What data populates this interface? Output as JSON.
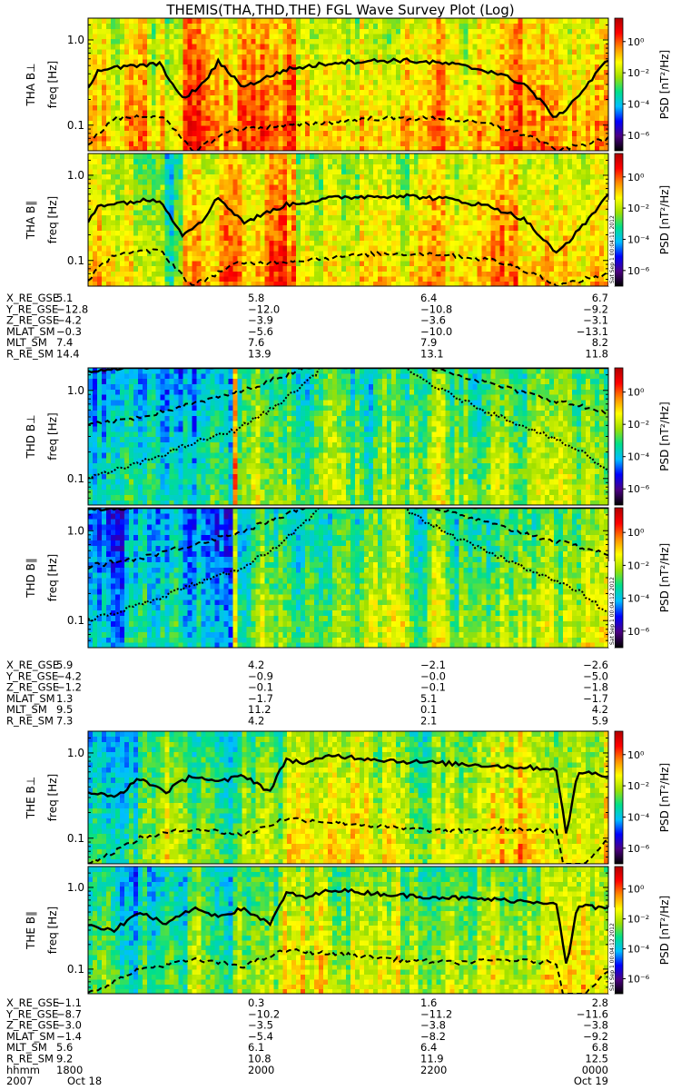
{
  "title": "THEMIS(THA,THD,THE) FGL Wave Survey Plot (Log)",
  "colorbar": {
    "label": "PSD [nT²/Hz]",
    "ticks": [
      "10⁰",
      "10⁻²",
      "10⁻⁴",
      "10⁻⁶"
    ],
    "tick_exponents": [
      0,
      -2,
      -4,
      -6
    ],
    "colors": [
      "#000000",
      "#4b0082",
      "#0000ff",
      "#00bfff",
      "#00e08a",
      "#a0e000",
      "#ffff00",
      "#ff8c00",
      "#ff0000",
      "#b00000"
    ]
  },
  "freq_axis": {
    "ylabel": "freq [Hz]",
    "ticks": [
      "1.0",
      "0.1"
    ],
    "scale": "log"
  },
  "stamps": {
    "a": "Sat Sep  1 00:04:11 2012",
    "b": "Sat Sep  1 00:04:12 2012"
  },
  "groups": [
    {
      "probe": "THA",
      "panels": [
        {
          "label": "THA B⊥"
        },
        {
          "label": "THA B∥",
          "stamp": "a"
        }
      ],
      "ephemeris": {
        "labels": [
          "X_RE_GSE",
          "Y_RE_GSE",
          "Z_RE_GSE",
          "MLAT_SM",
          "MLT_SM",
          "R_RE_SM"
        ],
        "columns": [
          [
            "5.1",
            "−12.8",
            "−4.2",
            "−0.3",
            "7.4",
            "14.4"
          ],
          [
            "5.8",
            "−12.0",
            "−3.9",
            "−5.6",
            "7.6",
            "13.9"
          ],
          [
            "6.4",
            "−10.8",
            "−3.6",
            "−10.0",
            "7.9",
            "13.1"
          ],
          [
            "6.7",
            "−9.2",
            "−3.1",
            "−13.1",
            "8.2",
            "11.8"
          ]
        ]
      }
    },
    {
      "probe": "THD",
      "panels": [
        {
          "label": "THD B⊥"
        },
        {
          "label": "THD B∥",
          "stamp": "b"
        }
      ],
      "ephemeris": {
        "labels": [
          "X_RE_GSE",
          "Y_RE_GSE",
          "Z_RE_GSE",
          "MLAT_SM",
          "MLT_SM",
          "R_RE_SM"
        ],
        "columns": [
          [
            "5.9",
            "−4.2",
            "−1.2",
            "1.3",
            "9.5",
            "7.3"
          ],
          [
            "4.2",
            "−0.9",
            "−0.1",
            "−1.7",
            "11.2",
            "4.2"
          ],
          [
            "−2.1",
            "−0.0",
            "−0.1",
            "5.1",
            "0.1",
            "2.1"
          ],
          [
            "−2.6",
            "−5.0",
            "−1.8",
            "−1.7",
            "4.2",
            "5.9"
          ]
        ]
      }
    },
    {
      "probe": "THE",
      "panels": [
        {
          "label": "THE B⊥"
        },
        {
          "label": "THE B∥",
          "stamp": "b"
        }
      ],
      "ephemeris": {
        "labels": [
          "X_RE_GSE",
          "Y_RE_GSE",
          "Z_RE_GSE",
          "MLAT_SM",
          "MLT_SM",
          "R_RE_SM",
          "hhmm",
          "2007"
        ],
        "columns": [
          [
            "−1.1",
            "−8.7",
            "−3.0",
            "−1.4",
            "5.6",
            "9.2",
            "1800",
            "Oct 18"
          ],
          [
            "0.3",
            "−10.2",
            "−3.5",
            "−5.4",
            "6.1",
            "10.8",
            "2000",
            ""
          ],
          [
            "1.6",
            "−11.2",
            "−3.8",
            "−8.2",
            "6.4",
            "11.9",
            "2200",
            ""
          ],
          [
            "2.8",
            "−11.6",
            "−3.8",
            "−9.2",
            "6.8",
            "12.5",
            "0000",
            "Oct 19"
          ]
        ]
      }
    }
  ],
  "chart_data": {
    "type": "heatmap",
    "title": "THEMIS(THA,THD,THE) FGL Wave Survey Plot (Log)",
    "ylabel": "freq [Hz]",
    "yscale": "log",
    "ylim_hz": [
      0.05,
      1.8
    ],
    "y_ticks": [
      0.1,
      1.0
    ],
    "x_tick_labels": [
      "1800",
      "2000",
      "2200",
      "0000"
    ],
    "x_range": [
      "2007 Oct 18 1800",
      "2007 Oct 19 0000"
    ],
    "colorbar_label": "PSD [nT²/Hz]",
    "colorbar_range_log10": [
      -7,
      1.5
    ],
    "colorbar_ticks_log10": [
      0,
      -2,
      -4,
      -6
    ],
    "panels": [
      {
        "name": "THA B⊥",
        "intensity_bands": [
          [
            0.0,
            0.15,
            -1.5
          ],
          [
            0.15,
            0.18,
            -2.4
          ],
          [
            0.18,
            0.23,
            -0.6
          ],
          [
            0.23,
            0.4,
            -0.4
          ],
          [
            0.4,
            0.52,
            -1.4
          ],
          [
            0.52,
            0.68,
            -1.1
          ],
          [
            0.68,
            0.77,
            -1.2
          ],
          [
            0.77,
            0.88,
            -0.9
          ],
          [
            0.88,
            1.0,
            -1.0
          ]
        ],
        "solid_line_hz": [
          [
            0.0,
            0.28
          ],
          [
            0.02,
            0.45
          ],
          [
            0.1,
            0.5
          ],
          [
            0.14,
            0.52
          ],
          [
            0.18,
            0.2
          ],
          [
            0.22,
            0.3
          ],
          [
            0.25,
            0.55
          ],
          [
            0.3,
            0.28
          ],
          [
            0.38,
            0.45
          ],
          [
            0.48,
            0.55
          ],
          [
            0.6,
            0.58
          ],
          [
            0.7,
            0.52
          ],
          [
            0.78,
            0.42
          ],
          [
            0.84,
            0.3
          ],
          [
            0.9,
            0.12
          ],
          [
            0.95,
            0.25
          ],
          [
            1.0,
            0.6
          ]
        ],
        "dashed_line_hz": [
          [
            0.0,
            0.06
          ],
          [
            0.05,
            0.12
          ],
          [
            0.14,
            0.13
          ],
          [
            0.2,
            0.05
          ],
          [
            0.28,
            0.09
          ],
          [
            0.4,
            0.1
          ],
          [
            0.55,
            0.12
          ],
          [
            0.68,
            0.12
          ],
          [
            0.78,
            0.1
          ],
          [
            0.86,
            0.07
          ],
          [
            0.9,
            0.05
          ],
          [
            1.0,
            0.07
          ]
        ]
      },
      {
        "name": "THA B∥",
        "intensity_bands": [
          [
            0.0,
            0.15,
            -2.0
          ],
          [
            0.15,
            0.18,
            -2.8
          ],
          [
            0.18,
            0.23,
            -0.8
          ],
          [
            0.23,
            0.4,
            -0.7
          ],
          [
            0.4,
            0.52,
            -1.8
          ],
          [
            0.52,
            0.68,
            -1.4
          ],
          [
            0.68,
            0.77,
            -1.6
          ],
          [
            0.77,
            0.88,
            -1.2
          ],
          [
            0.88,
            1.0,
            -1.4
          ]
        ],
        "solid_line_hz": [
          [
            0.0,
            0.28
          ],
          [
            0.02,
            0.45
          ],
          [
            0.1,
            0.5
          ],
          [
            0.14,
            0.52
          ],
          [
            0.18,
            0.2
          ],
          [
            0.22,
            0.3
          ],
          [
            0.25,
            0.55
          ],
          [
            0.3,
            0.28
          ],
          [
            0.38,
            0.45
          ],
          [
            0.48,
            0.55
          ],
          [
            0.6,
            0.58
          ],
          [
            0.7,
            0.52
          ],
          [
            0.78,
            0.42
          ],
          [
            0.84,
            0.3
          ],
          [
            0.9,
            0.12
          ],
          [
            0.95,
            0.25
          ],
          [
            1.0,
            0.6
          ]
        ],
        "dashed_line_hz": [
          [
            0.0,
            0.06
          ],
          [
            0.05,
            0.12
          ],
          [
            0.14,
            0.13
          ],
          [
            0.2,
            0.05
          ],
          [
            0.28,
            0.09
          ],
          [
            0.4,
            0.1
          ],
          [
            0.55,
            0.12
          ],
          [
            0.68,
            0.12
          ],
          [
            0.78,
            0.1
          ],
          [
            0.86,
            0.07
          ],
          [
            0.9,
            0.05
          ],
          [
            1.0,
            0.07
          ]
        ]
      },
      {
        "name": "THD B⊥",
        "intensity_bands": [
          [
            0.0,
            0.28,
            -4.0
          ],
          [
            0.28,
            0.29,
            -0.5
          ],
          [
            0.29,
            0.55,
            -2.8
          ],
          [
            0.55,
            1.0,
            -2.5
          ]
        ],
        "solid_line_hz": [
          [
            0.0,
            1.65
          ],
          [
            0.05,
            1.8
          ],
          [
            0.15,
            1.9
          ]
        ],
        "dashed_line_hz": [
          [
            0.0,
            0.4
          ],
          [
            0.1,
            0.5
          ],
          [
            0.2,
            0.7
          ],
          [
            0.3,
            1.0
          ],
          [
            0.38,
            1.5
          ],
          [
            0.42,
            1.9
          ],
          [
            0.65,
            1.9
          ],
          [
            0.75,
            1.3
          ],
          [
            0.85,
            0.9
          ],
          [
            0.95,
            0.65
          ],
          [
            1.0,
            0.55
          ]
        ],
        "dotted_line_hz": [
          [
            0.0,
            0.1
          ],
          [
            0.1,
            0.15
          ],
          [
            0.2,
            0.25
          ],
          [
            0.28,
            0.35
          ],
          [
            0.35,
            0.6
          ],
          [
            0.4,
            1.0
          ],
          [
            0.44,
            1.6
          ],
          [
            0.45,
            1.9
          ],
          [
            0.6,
            1.9
          ],
          [
            0.62,
            1.6
          ],
          [
            0.68,
            1.0
          ],
          [
            0.76,
            0.6
          ],
          [
            0.86,
            0.35
          ],
          [
            0.95,
            0.2
          ],
          [
            1.0,
            0.12
          ]
        ]
      },
      {
        "name": "THD B∥",
        "intensity_bands": [
          [
            0.0,
            0.28,
            -4.0
          ],
          [
            0.28,
            0.29,
            -0.5
          ],
          [
            0.29,
            0.55,
            -2.8
          ],
          [
            0.55,
            1.0,
            -2.5
          ]
        ],
        "solid_line_hz": [
          [
            0.0,
            1.65
          ],
          [
            0.05,
            1.8
          ],
          [
            0.15,
            1.9
          ]
        ],
        "dashed_line_hz": [
          [
            0.0,
            0.4
          ],
          [
            0.1,
            0.5
          ],
          [
            0.2,
            0.7
          ],
          [
            0.3,
            1.0
          ],
          [
            0.38,
            1.5
          ],
          [
            0.42,
            1.9
          ],
          [
            0.65,
            1.9
          ],
          [
            0.75,
            1.3
          ],
          [
            0.85,
            0.9
          ],
          [
            0.95,
            0.65
          ],
          [
            1.0,
            0.55
          ]
        ],
        "dotted_line_hz": [
          [
            0.0,
            0.1
          ],
          [
            0.1,
            0.15
          ],
          [
            0.2,
            0.25
          ],
          [
            0.28,
            0.35
          ],
          [
            0.35,
            0.6
          ],
          [
            0.4,
            1.0
          ],
          [
            0.44,
            1.6
          ],
          [
            0.45,
            1.9
          ],
          [
            0.6,
            1.9
          ],
          [
            0.62,
            1.6
          ],
          [
            0.68,
            1.0
          ],
          [
            0.76,
            0.6
          ],
          [
            0.86,
            0.35
          ],
          [
            0.95,
            0.2
          ],
          [
            1.0,
            0.12
          ]
        ]
      },
      {
        "name": "THE B⊥",
        "intensity_bands": [
          [
            0.0,
            0.15,
            -3.3
          ],
          [
            0.15,
            0.37,
            -2.5
          ],
          [
            0.37,
            0.47,
            -1.5
          ],
          [
            0.47,
            0.6,
            -1.8
          ],
          [
            0.6,
            0.75,
            -2.3
          ],
          [
            0.75,
            0.95,
            -1.5
          ],
          [
            0.95,
            1.0,
            -1.2
          ]
        ],
        "solid_line_hz": [
          [
            0.0,
            0.35
          ],
          [
            0.05,
            0.3
          ],
          [
            0.1,
            0.5
          ],
          [
            0.15,
            0.35
          ],
          [
            0.2,
            0.55
          ],
          [
            0.25,
            0.45
          ],
          [
            0.3,
            0.55
          ],
          [
            0.35,
            0.35
          ],
          [
            0.38,
            0.85
          ],
          [
            0.42,
            0.75
          ],
          [
            0.47,
            0.95
          ],
          [
            0.5,
            0.9
          ],
          [
            0.6,
            0.8
          ],
          [
            0.7,
            0.75
          ],
          [
            0.8,
            0.7
          ],
          [
            0.9,
            0.65
          ],
          [
            0.92,
            0.1
          ],
          [
            0.94,
            0.6
          ],
          [
            1.0,
            0.55
          ]
        ],
        "dashed_line_hz": [
          [
            0.0,
            0.05
          ],
          [
            0.05,
            0.07
          ],
          [
            0.1,
            0.1
          ],
          [
            0.2,
            0.13
          ],
          [
            0.3,
            0.11
          ],
          [
            0.38,
            0.17
          ],
          [
            0.5,
            0.15
          ],
          [
            0.6,
            0.13
          ],
          [
            0.7,
            0.12
          ],
          [
            0.8,
            0.13
          ],
          [
            0.9,
            0.12
          ],
          [
            0.92,
            0.03
          ],
          [
            1.0,
            0.1
          ]
        ]
      },
      {
        "name": "THE B∥",
        "intensity_bands": [
          [
            0.0,
            0.15,
            -3.5
          ],
          [
            0.15,
            0.37,
            -2.7
          ],
          [
            0.37,
            0.47,
            -1.7
          ],
          [
            0.47,
            0.6,
            -2.0
          ],
          [
            0.6,
            0.75,
            -2.6
          ],
          [
            0.75,
            0.95,
            -1.8
          ],
          [
            0.95,
            1.0,
            -1.4
          ]
        ],
        "solid_line_hz": [
          [
            0.0,
            0.35
          ],
          [
            0.05,
            0.3
          ],
          [
            0.1,
            0.5
          ],
          [
            0.15,
            0.35
          ],
          [
            0.2,
            0.55
          ],
          [
            0.25,
            0.45
          ],
          [
            0.3,
            0.55
          ],
          [
            0.35,
            0.35
          ],
          [
            0.38,
            0.85
          ],
          [
            0.42,
            0.75
          ],
          [
            0.47,
            0.95
          ],
          [
            0.5,
            0.9
          ],
          [
            0.6,
            0.8
          ],
          [
            0.7,
            0.75
          ],
          [
            0.8,
            0.7
          ],
          [
            0.9,
            0.65
          ],
          [
            0.92,
            0.1
          ],
          [
            0.94,
            0.6
          ],
          [
            1.0,
            0.55
          ]
        ],
        "dashed_line_hz": [
          [
            0.0,
            0.05
          ],
          [
            0.05,
            0.07
          ],
          [
            0.1,
            0.1
          ],
          [
            0.2,
            0.13
          ],
          [
            0.3,
            0.11
          ],
          [
            0.38,
            0.17
          ],
          [
            0.5,
            0.15
          ],
          [
            0.6,
            0.13
          ],
          [
            0.7,
            0.12
          ],
          [
            0.8,
            0.13
          ],
          [
            0.9,
            0.12
          ],
          [
            0.92,
            0.03
          ],
          [
            1.0,
            0.1
          ]
        ]
      }
    ]
  }
}
